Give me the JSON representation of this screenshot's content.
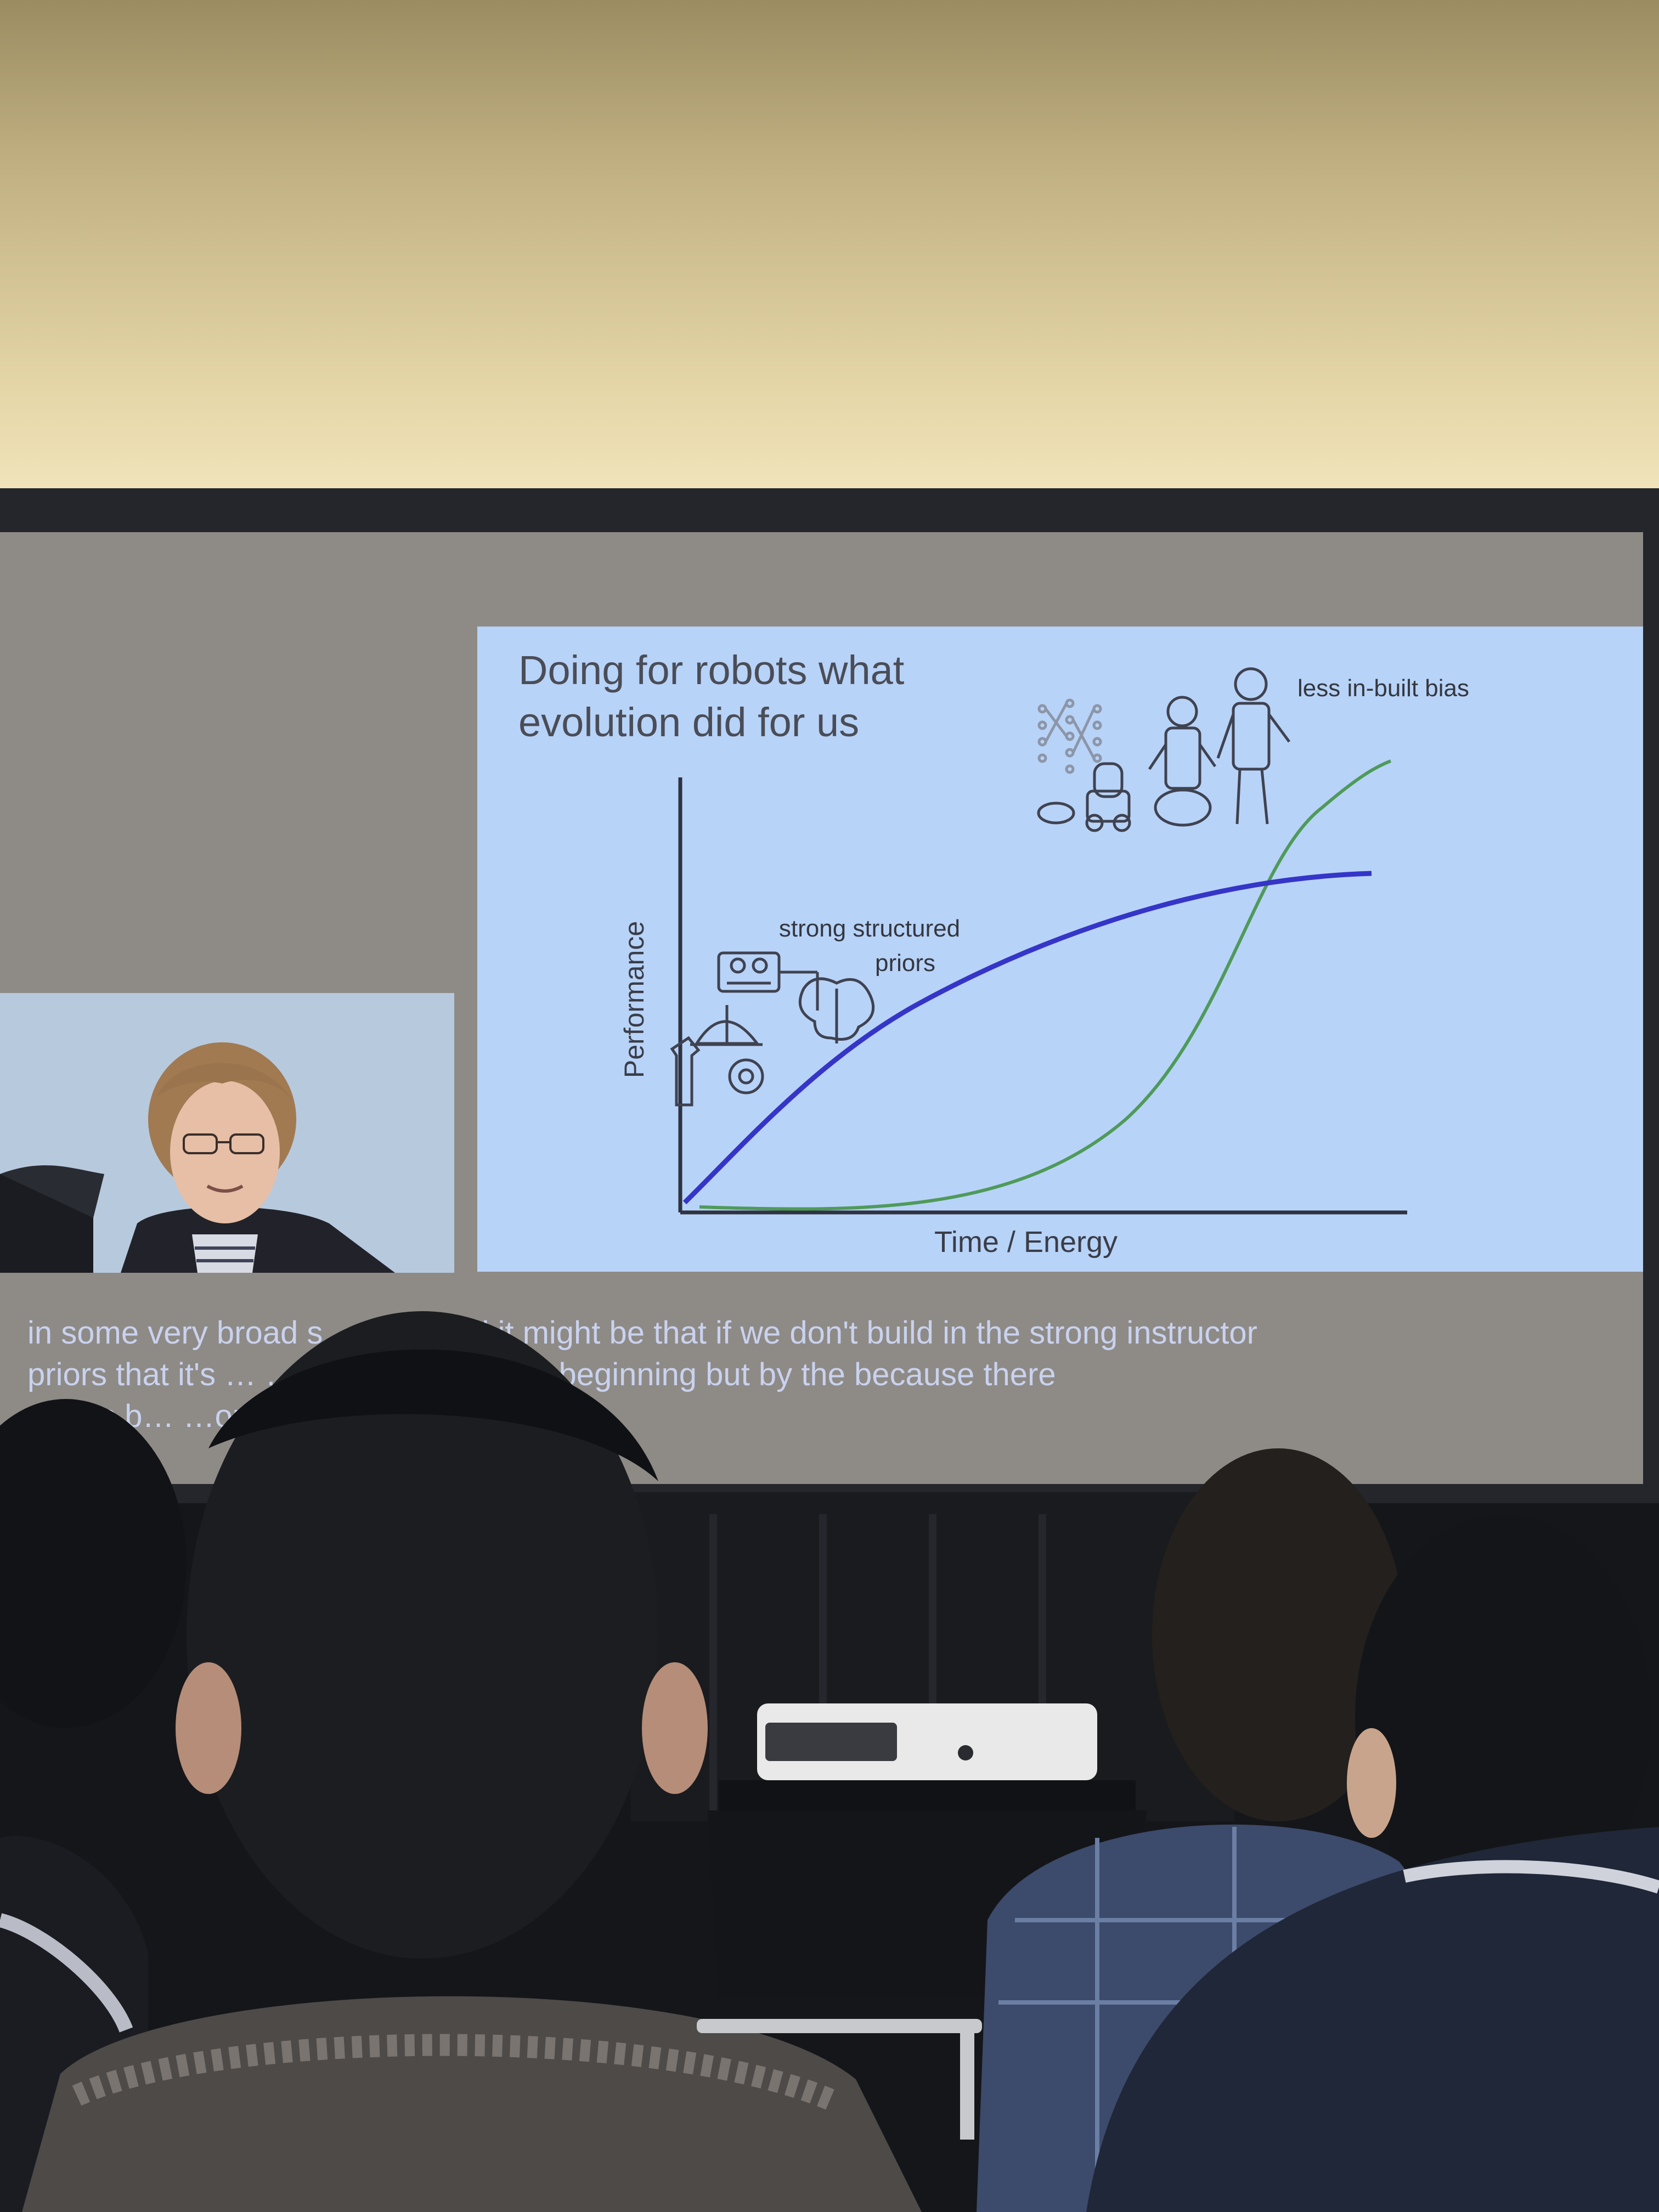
{
  "slide": {
    "title_line1": "Doing for robots what",
    "title_line2": "evolution did for us",
    "y_axis_label": "Performance",
    "x_axis_label": "Time / Energy",
    "annotation_strong_line1": "strong structured",
    "annotation_strong_line2": "priors",
    "annotation_less_bias": "less in-built bias"
  },
  "captions": {
    "line1": "in some very broad s… …ks and it might be that if we don't build in the strong instructor",
    "line2": "priors that it's … …somewhere at the beginning but by the because there",
    "line3": "…less b… …ou know the the kind of"
  },
  "colors": {
    "slide_background": "#b8d3f8",
    "blue_curve": "#3535c8",
    "green_curve": "#4f9a5a",
    "caption_text": "#c9d2ee"
  }
}
